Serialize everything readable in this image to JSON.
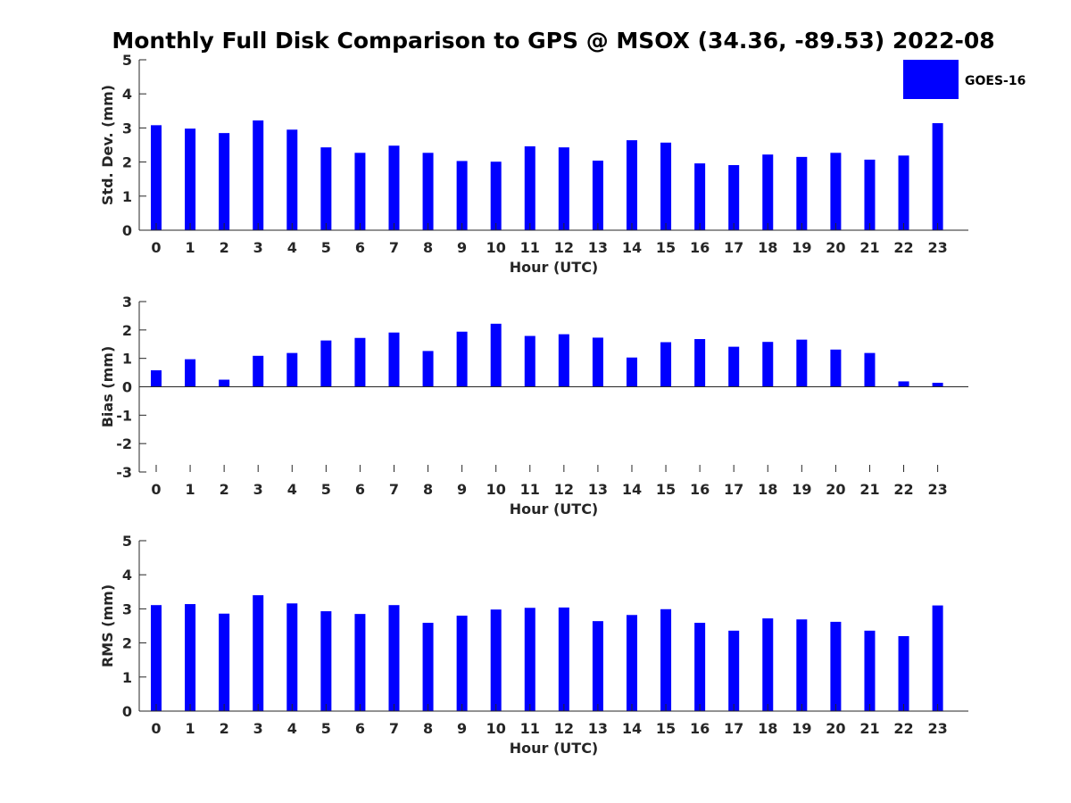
{
  "figure": {
    "title": "Monthly Full Disk Comparison to GPS @ MSOX (34.36, -89.53) 2022-08"
  },
  "legend": {
    "label": "GOES-16",
    "placement": "top-right",
    "color": "#0000ff"
  },
  "chart_data": [
    {
      "type": "bar",
      "ylabel": "Std. Dev. (mm)",
      "xlabel": "Hour (UTC)",
      "ylim": [
        0,
        5
      ],
      "yticks": [
        0,
        1,
        2,
        3,
        4,
        5
      ],
      "categories": [
        "0",
        "1",
        "2",
        "3",
        "4",
        "5",
        "6",
        "7",
        "8",
        "9",
        "10",
        "11",
        "12",
        "13",
        "14",
        "15",
        "16",
        "17",
        "18",
        "19",
        "20",
        "21",
        "22",
        "23"
      ],
      "series": [
        {
          "name": "GOES-16",
          "color": "#0000ff",
          "values": [
            3.08,
            2.98,
            2.85,
            3.22,
            2.95,
            2.43,
            2.27,
            2.48,
            2.27,
            2.03,
            2.01,
            2.46,
            2.43,
            2.04,
            2.64,
            2.57,
            1.96,
            1.91,
            2.22,
            2.15,
            2.27,
            2.07,
            2.19,
            3.14
          ]
        }
      ]
    },
    {
      "type": "bar",
      "ylabel": "Bias (mm)",
      "xlabel": "Hour (UTC)",
      "ylim": [
        -3,
        3
      ],
      "yticks": [
        -3,
        -2,
        -1,
        0,
        1,
        2,
        3
      ],
      "categories": [
        "0",
        "1",
        "2",
        "3",
        "4",
        "5",
        "6",
        "7",
        "8",
        "9",
        "10",
        "11",
        "12",
        "13",
        "14",
        "15",
        "16",
        "17",
        "18",
        "19",
        "20",
        "21",
        "22",
        "23"
      ],
      "series": [
        {
          "name": "GOES-16",
          "color": "#0000ff",
          "values": [
            0.58,
            0.97,
            0.25,
            1.09,
            1.19,
            1.63,
            1.72,
            1.91,
            1.26,
            1.94,
            2.22,
            1.79,
            1.85,
            1.73,
            1.03,
            1.57,
            1.68,
            1.41,
            1.58,
            1.66,
            1.31,
            1.19,
            0.19,
            0.14
          ]
        }
      ]
    },
    {
      "type": "bar",
      "ylabel": "RMS (mm)",
      "xlabel": "Hour (UTC)",
      "ylim": [
        0,
        5
      ],
      "yticks": [
        0,
        1,
        2,
        3,
        4,
        5
      ],
      "categories": [
        "0",
        "1",
        "2",
        "3",
        "4",
        "5",
        "6",
        "7",
        "8",
        "9",
        "10",
        "11",
        "12",
        "13",
        "14",
        "15",
        "16",
        "17",
        "18",
        "19",
        "20",
        "21",
        "22",
        "23"
      ],
      "series": [
        {
          "name": "GOES-16",
          "color": "#0000ff",
          "values": [
            3.11,
            3.14,
            2.86,
            3.4,
            3.16,
            2.93,
            2.85,
            3.11,
            2.59,
            2.8,
            2.98,
            3.03,
            3.04,
            2.64,
            2.82,
            2.99,
            2.59,
            2.36,
            2.72,
            2.69,
            2.62,
            2.36,
            2.2,
            3.1
          ]
        }
      ]
    }
  ]
}
